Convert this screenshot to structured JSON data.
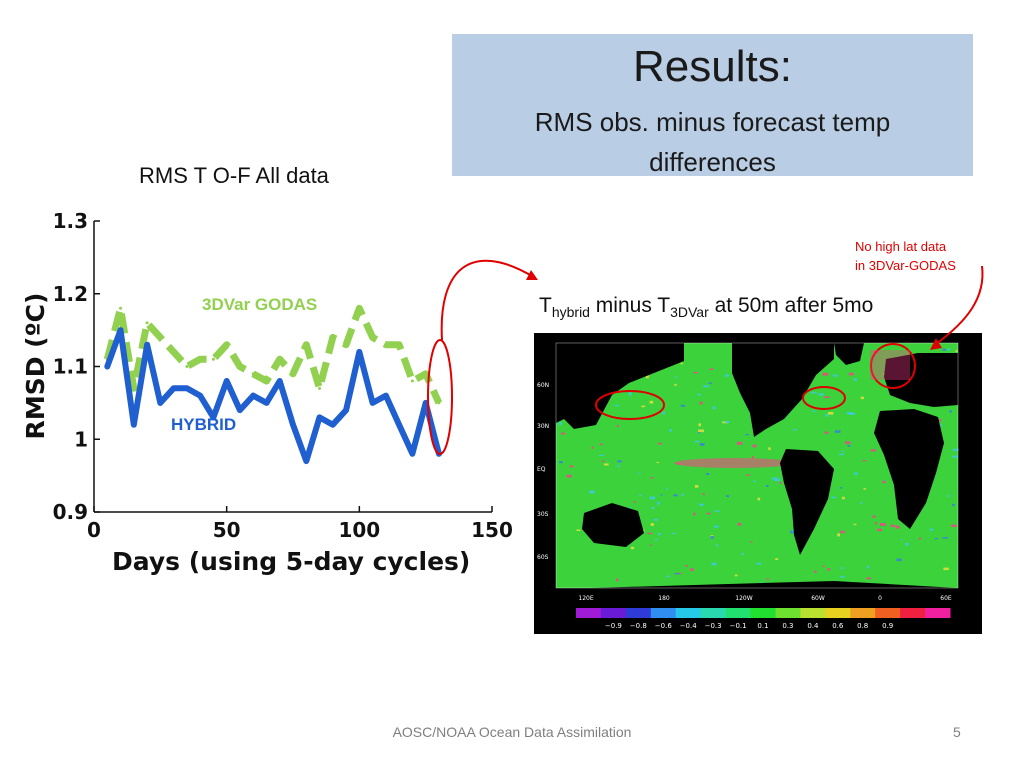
{
  "title": "Results:",
  "subtitle": "RMS obs. minus forecast  temp differences",
  "chart_data": {
    "type": "line",
    "title": "RMS T O-F All data",
    "xlabel": "Days (using 5-day cycles)",
    "ylabel": "RMSD (ºC)",
    "xlim": [
      0,
      150
    ],
    "ylim": [
      0.9,
      1.3
    ],
    "xticks": [
      0,
      50,
      100,
      150
    ],
    "yticks": [
      0.9,
      1,
      1.1,
      1.2,
      1.3
    ],
    "grid": false,
    "series": [
      {
        "name": "3DVar GODAS",
        "color": "#92d050",
        "style": "dashed",
        "x": [
          5,
          10,
          15,
          20,
          25,
          30,
          35,
          40,
          45,
          50,
          55,
          60,
          65,
          70,
          75,
          80,
          85,
          90,
          95,
          100,
          105,
          110,
          115,
          120,
          125,
          130
        ],
        "y": [
          1.11,
          1.18,
          1.07,
          1.16,
          1.14,
          1.12,
          1.1,
          1.11,
          1.11,
          1.13,
          1.1,
          1.09,
          1.08,
          1.11,
          1.09,
          1.13,
          1.07,
          1.14,
          1.13,
          1.18,
          1.14,
          1.13,
          1.13,
          1.08,
          1.09,
          1.05
        ]
      },
      {
        "name": "HYBRID",
        "color": "#1f5fd0",
        "style": "solid",
        "x": [
          5,
          10,
          15,
          20,
          25,
          30,
          35,
          40,
          45,
          50,
          55,
          60,
          65,
          70,
          75,
          80,
          85,
          90,
          95,
          100,
          105,
          110,
          115,
          120,
          125,
          130
        ],
        "y": [
          1.1,
          1.15,
          1.02,
          1.13,
          1.05,
          1.07,
          1.07,
          1.06,
          1.03,
          1.08,
          1.04,
          1.06,
          1.05,
          1.08,
          1.02,
          0.97,
          1.03,
          1.02,
          1.04,
          1.12,
          1.05,
          1.06,
          1.02,
          0.98,
          1.05,
          0.98
        ]
      }
    ],
    "series_labels": [
      "3DVar GODAS",
      "HYBRID"
    ]
  },
  "map": {
    "title_parts": {
      "t1": "T",
      "sub1": "hybrid",
      "mid": " minus T",
      "sub2": "3DVar",
      "end": " at 50m after 5mo"
    },
    "note_line1": "No high lat data",
    "note_line2": "in 3DVar-GODAS",
    "lat_labels": [
      "60N",
      "30N",
      "EQ",
      "30S",
      "60S"
    ],
    "lon_labels": [
      "120E",
      "180",
      "120W",
      "60W",
      "0",
      "60E"
    ],
    "colorbar": {
      "colors": [
        "#a01bd6",
        "#6a1bd6",
        "#2f3bd6",
        "#2f8ef0",
        "#26c8e8",
        "#2ad8b0",
        "#22e070",
        "#22e030",
        "#6ee030",
        "#b8e030",
        "#e8d020",
        "#f0a020",
        "#f06020",
        "#f02040",
        "#f020a0"
      ],
      "tick_labels": [
        "−0.9",
        "−0.8",
        "−0.6",
        "−0.4",
        "−0.3",
        "−0.1",
        "0.1",
        "0.3",
        "0.4",
        "0.6",
        "0.8",
        "0.9"
      ]
    },
    "colors": {
      "ocean": "#3cd23c",
      "land": "#000000",
      "positive": "#ff3c8c",
      "negative": "#3c78f0",
      "cyan": "#3cc8f0",
      "yellow": "#f0e03c"
    }
  },
  "annotation_color": "#e00000",
  "footer": "AOSC/NOAA Ocean Data Assimilation",
  "page_number": "5"
}
